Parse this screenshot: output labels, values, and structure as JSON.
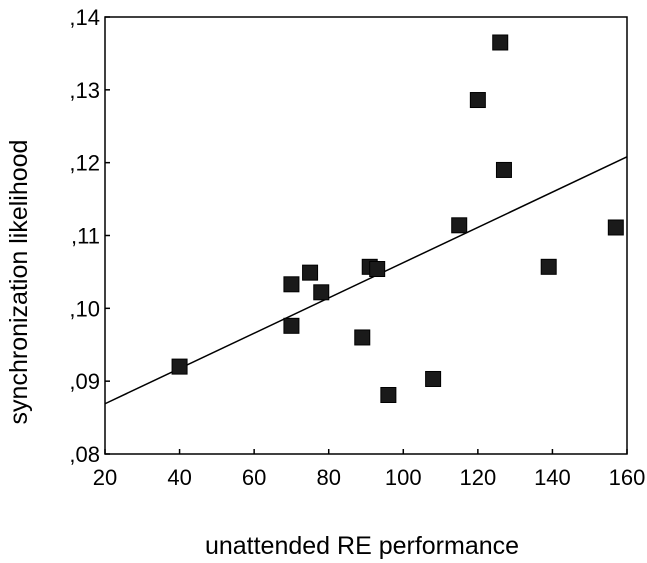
{
  "chart_data": {
    "type": "scatter",
    "title": "",
    "xlabel": "unattended RE performance",
    "ylabel": "synchronization likelihood",
    "xlim": [
      20,
      160
    ],
    "ylim": [
      0.08,
      0.14
    ],
    "x_ticks": [
      20,
      40,
      60,
      80,
      100,
      120,
      140,
      160
    ],
    "x_tick_labels": [
      "20",
      "40",
      "60",
      "80",
      "100",
      "120",
      "140",
      "160"
    ],
    "y_ticks": [
      0.08,
      0.09,
      0.1,
      0.11,
      0.12,
      0.13,
      0.14
    ],
    "y_tick_labels": [
      ",08",
      ",09",
      ",10",
      ",11",
      ",12",
      ",13",
      ",14"
    ],
    "grid": false,
    "legend": "none",
    "marker": "square",
    "marker_color": "#1a1a1a",
    "points": [
      {
        "x": 40,
        "y": 0.092
      },
      {
        "x": 70,
        "y": 0.1033
      },
      {
        "x": 70,
        "y": 0.0976
      },
      {
        "x": 75,
        "y": 0.1049
      },
      {
        "x": 78,
        "y": 0.1022
      },
      {
        "x": 89,
        "y": 0.096
      },
      {
        "x": 91,
        "y": 0.1057
      },
      {
        "x": 93,
        "y": 0.1054
      },
      {
        "x": 96,
        "y": 0.0881
      },
      {
        "x": 108,
        "y": 0.0903
      },
      {
        "x": 115,
        "y": 0.1114
      },
      {
        "x": 120,
        "y": 0.1286
      },
      {
        "x": 126,
        "y": 0.1365
      },
      {
        "x": 127,
        "y": 0.119
      },
      {
        "x": 139,
        "y": 0.1057
      },
      {
        "x": 157,
        "y": 0.1111
      }
    ],
    "fit_line": {
      "type": "linear",
      "x": [
        20,
        160
      ],
      "y": [
        0.0869,
        0.1208
      ]
    }
  }
}
